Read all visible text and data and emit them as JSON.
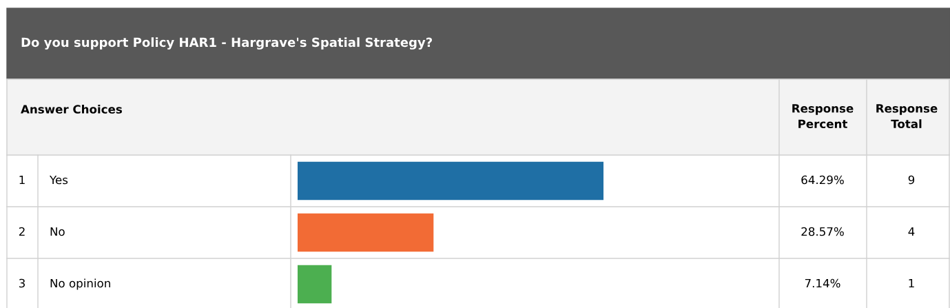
{
  "chart_data": {
    "type": "bar",
    "orientation": "horizontal",
    "title": "Do you support Policy HAR1 - Hargrave's Spatial Strategy?",
    "xlabel": "Answer Choices",
    "categories": [
      "Yes",
      "No",
      "No opinion"
    ],
    "values": [
      64.29,
      28.57,
      7.14
    ],
    "value_labels": [
      "64.29%",
      "28.57%",
      "7.14%"
    ],
    "colors": [
      "#1f6fa5",
      "#f26b35",
      "#4caf50"
    ],
    "annotations": [
      "Response Percent",
      "Response Total",
      "1",
      "2",
      "3",
      "9",
      "4",
      "1"
    ]
  }
}
